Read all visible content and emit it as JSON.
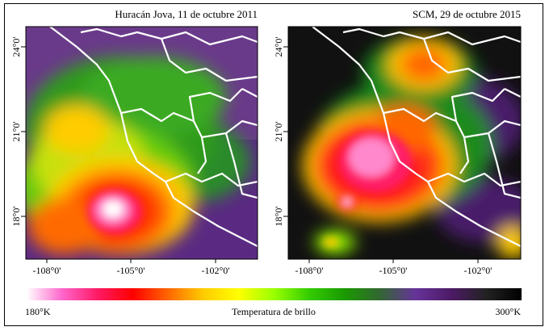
{
  "panels": [
    {
      "title": "Huracán Jova, 11 de octubre 2011"
    },
    {
      "title": "SCM, 29 de octubre 2015"
    }
  ],
  "axes": {
    "lat_ticks": [
      "24°0'",
      "21°0'",
      "18°0'"
    ],
    "lon_ticks": [
      "-108°0'",
      "-105°0'",
      "-102°0'"
    ]
  },
  "colorbar": {
    "min_label": "180°K",
    "max_label": "300°K",
    "title": "Temperatura de brillo",
    "colors": [
      "#ffffff",
      "#ff66cc",
      "#ff1a66",
      "#ff0000",
      "#ff6600",
      "#ffcc00",
      "#ffff00",
      "#99ff00",
      "#33cc00",
      "#1a9900",
      "#336633",
      "#663399",
      "#4d1a66",
      "#222222",
      "#000000"
    ]
  }
}
